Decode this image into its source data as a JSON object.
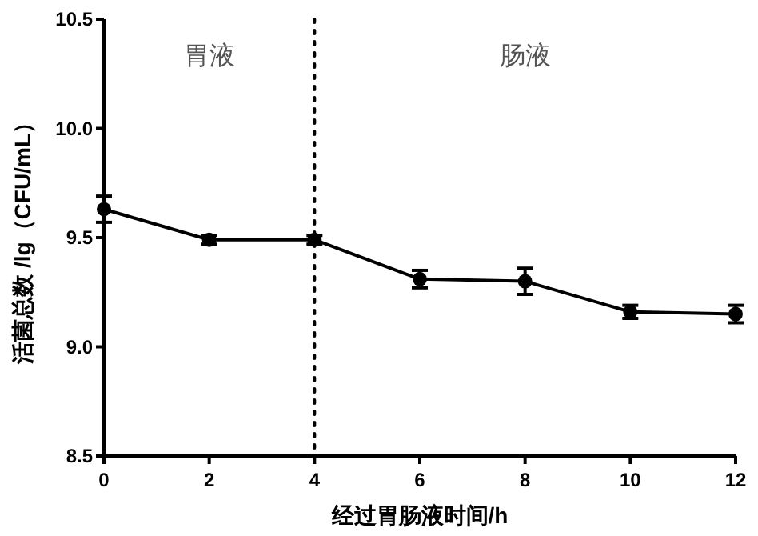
{
  "chart_data": {
    "type": "line",
    "xlabel": "经过胃肠液时间/h",
    "ylabel": "活菌总数 /lg（CFU/mL）",
    "x": [
      0,
      2,
      4,
      6,
      8,
      10,
      12
    ],
    "series": [
      {
        "color": "#000000",
        "values": [
          9.63,
          9.49,
          9.49,
          9.31,
          9.3,
          9.16,
          9.15
        ],
        "errors": [
          0.06,
          0.02,
          0.02,
          0.04,
          0.06,
          0.03,
          0.04
        ]
      }
    ],
    "xlim": [
      0,
      12
    ],
    "xticks": [
      0,
      2,
      4,
      6,
      8,
      10,
      12
    ],
    "ylim": [
      8.5,
      10.5
    ],
    "yticks": [
      8.5,
      {
        "value": 9,
        "label": "9.0"
      },
      9.5,
      {
        "value": 10,
        "label": "10.0"
      },
      10.5
    ],
    "ref_lines": [
      {
        "axis": "x",
        "value": 4,
        "line_style": "dotted",
        "color": "#000000"
      }
    ],
    "annotations": [
      "胃液",
      "肠液"
    ],
    "marker": "circle",
    "line_style": "solid",
    "grid": false
  }
}
